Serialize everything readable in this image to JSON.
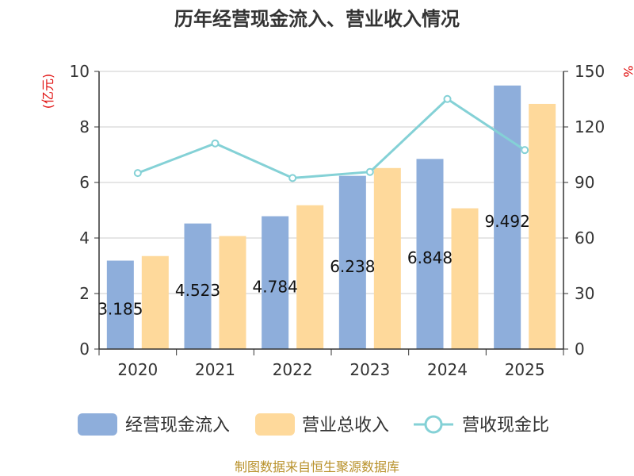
{
  "chart_data": {
    "type": "bar",
    "title": "历年经营现金流入、营业收入情况",
    "categories": [
      "2020",
      "2021",
      "2022",
      "2023",
      "2024",
      "2025"
    ],
    "y_left": {
      "label": "(亿元)",
      "ticks": [
        0,
        2,
        4,
        6,
        8,
        10
      ],
      "ylim": [
        0,
        10
      ]
    },
    "y_right": {
      "label": "%",
      "ticks": [
        0,
        30,
        60,
        90,
        120,
        150
      ],
      "ylim": [
        0,
        150
      ]
    },
    "series": [
      {
        "name": "经营现金流入",
        "type": "bar",
        "axis": "left",
        "color": "#8eaedb",
        "values": [
          3.185,
          4.523,
          4.784,
          6.238,
          6.848,
          9.492
        ],
        "labels": [
          "3.185",
          "4.523",
          "4.784",
          "6.238",
          "6.848",
          "9.492"
        ]
      },
      {
        "name": "营业总收入",
        "type": "bar",
        "axis": "left",
        "color": "#fed99b",
        "values": [
          3.35,
          4.07,
          5.18,
          6.52,
          5.07,
          8.83
        ]
      },
      {
        "name": "营收现金比",
        "type": "line",
        "axis": "right",
        "color": "#84d1d6",
        "values": [
          95.1,
          111.1,
          92.4,
          95.7,
          135.1,
          107.5
        ]
      }
    ],
    "source": "制图数据来自恒生聚源数据库"
  }
}
